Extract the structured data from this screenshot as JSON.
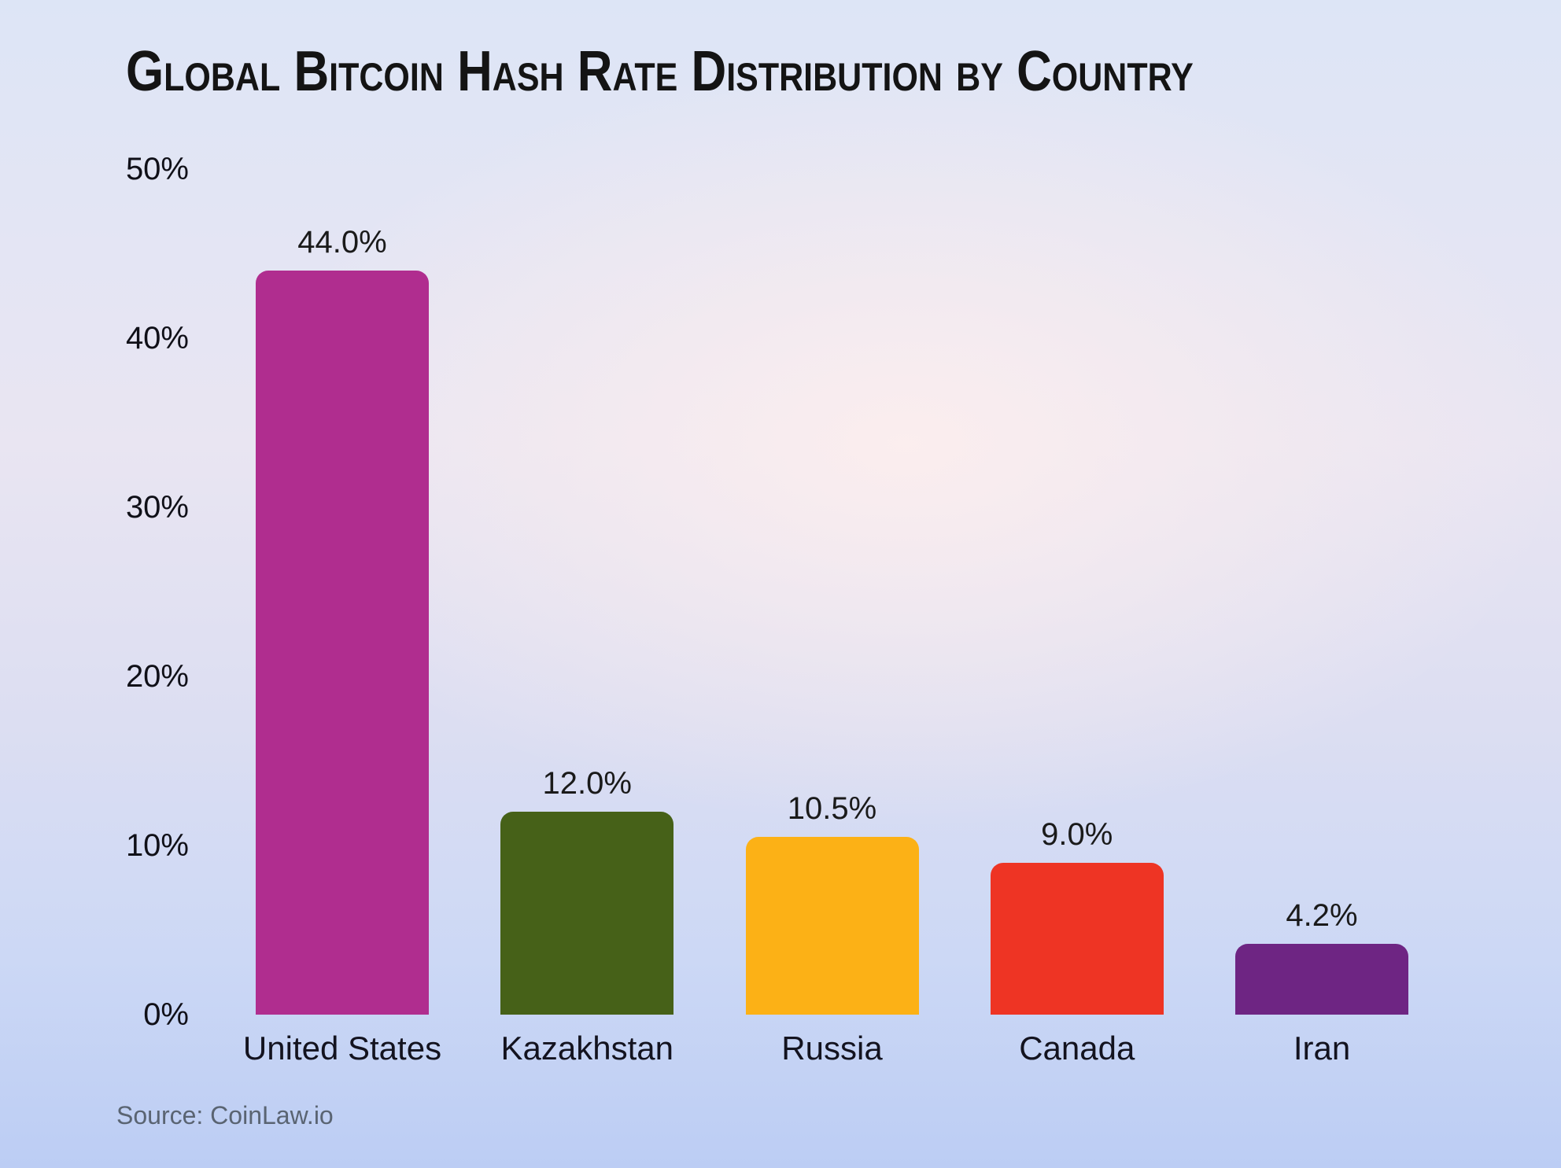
{
  "title": "Global Bitcoin Hash Rate Distribution by Country",
  "source": "Source: CoinLaw.io",
  "chart_data": {
    "type": "bar",
    "title": "Global Bitcoin Hash Rate Distribution by Country",
    "categories": [
      "United States",
      "Kazakhstan",
      "Russia",
      "Canada",
      "Iran"
    ],
    "values": [
      44.0,
      12.0,
      10.5,
      9.0,
      4.2
    ],
    "value_labels": [
      "44.0%",
      "12.0%",
      "10.5%",
      "9.0%",
      "4.2%"
    ],
    "bar_colors": [
      "#b02d8f",
      "#466118",
      "#fcb116",
      "#ee3424",
      "#6e2583"
    ],
    "xlabel": "",
    "ylabel": "",
    "ylim": [
      0,
      50
    ],
    "yticks": [
      0,
      10,
      20,
      30,
      40,
      50
    ],
    "ytick_labels": [
      "0%",
      "10%",
      "20%",
      "30%",
      "40%",
      "50%"
    ],
    "grid": false,
    "legend": false,
    "source": "Source: CoinLaw.io"
  }
}
